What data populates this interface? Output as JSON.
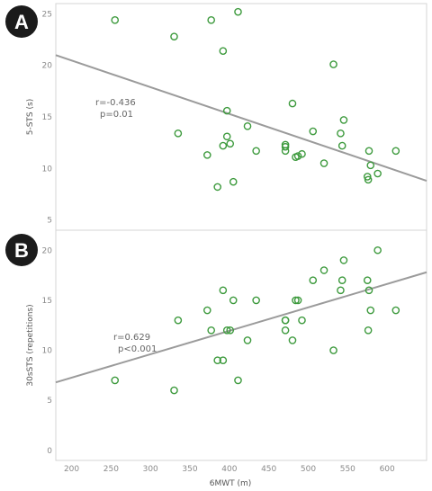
{
  "colors": {
    "point": "#3d9a3d",
    "trendline": "#9b9b9b",
    "frame": "#d4d4d4",
    "badge": "#1b1b1b"
  },
  "chart_data": [
    {
      "type": "scatter",
      "panel_label": "A",
      "ylabel": "5-STS (s)",
      "xlabel": "",
      "xlim": [
        180,
        650
      ],
      "ylim": [
        4,
        26
      ],
      "x_ticks": [],
      "y_ticks": [
        5,
        10,
        15,
        20,
        25
      ],
      "grid": false,
      "trendline": {
        "x": [
          180,
          650
        ],
        "y": [
          21.0,
          8.8
        ]
      },
      "annotation": [
        "r=-0.436",
        "p=0.01"
      ],
      "points": [
        {
          "x": 255,
          "y": 24.4
        },
        {
          "x": 330,
          "y": 22.8
        },
        {
          "x": 335,
          "y": 13.4
        },
        {
          "x": 372,
          "y": 11.3
        },
        {
          "x": 377,
          "y": 24.4
        },
        {
          "x": 385,
          "y": 8.2
        },
        {
          "x": 392,
          "y": 21.4
        },
        {
          "x": 392,
          "y": 12.2
        },
        {
          "x": 397,
          "y": 15.6
        },
        {
          "x": 397,
          "y": 13.1
        },
        {
          "x": 401,
          "y": 12.4
        },
        {
          "x": 405,
          "y": 8.7
        },
        {
          "x": 411,
          "y": 25.2
        },
        {
          "x": 423,
          "y": 14.1
        },
        {
          "x": 434,
          "y": 11.7
        },
        {
          "x": 471,
          "y": 12.3
        },
        {
          "x": 471,
          "y": 12.1
        },
        {
          "x": 471,
          "y": 11.7
        },
        {
          "x": 480,
          "y": 16.3
        },
        {
          "x": 484,
          "y": 11.1
        },
        {
          "x": 487,
          "y": 11.2
        },
        {
          "x": 492,
          "y": 11.4
        },
        {
          "x": 506,
          "y": 13.6
        },
        {
          "x": 520,
          "y": 10.5
        },
        {
          "x": 532,
          "y": 20.1
        },
        {
          "x": 541,
          "y": 13.4
        },
        {
          "x": 543,
          "y": 12.2
        },
        {
          "x": 545,
          "y": 14.7
        },
        {
          "x": 575,
          "y": 9.2
        },
        {
          "x": 576,
          "y": 8.9
        },
        {
          "x": 577,
          "y": 11.7
        },
        {
          "x": 579,
          "y": 10.3
        },
        {
          "x": 588,
          "y": 9.5
        },
        {
          "x": 611,
          "y": 11.7
        }
      ]
    },
    {
      "type": "scatter",
      "panel_label": "B",
      "ylabel": "30sSTS (repetitions)",
      "xlabel": "6MWT (m)",
      "xlim": [
        180,
        650
      ],
      "ylim": [
        -1,
        22
      ],
      "x_ticks": [
        200,
        250,
        300,
        350,
        400,
        450,
        500,
        550,
        600
      ],
      "y_ticks": [
        0,
        5,
        10,
        15,
        20
      ],
      "grid": false,
      "trendline": {
        "x": [
          180,
          650
        ],
        "y": [
          6.8,
          17.8
        ]
      },
      "annotation": [
        "r=0.629",
        "p<0.001"
      ],
      "points": [
        {
          "x": 255,
          "y": 7
        },
        {
          "x": 330,
          "y": 6
        },
        {
          "x": 335,
          "y": 13
        },
        {
          "x": 372,
          "y": 14
        },
        {
          "x": 377,
          "y": 12
        },
        {
          "x": 385,
          "y": 9
        },
        {
          "x": 392,
          "y": 16
        },
        {
          "x": 392,
          "y": 9
        },
        {
          "x": 397,
          "y": 12
        },
        {
          "x": 401,
          "y": 12
        },
        {
          "x": 405,
          "y": 15
        },
        {
          "x": 411,
          "y": 7
        },
        {
          "x": 423,
          "y": 11
        },
        {
          "x": 434,
          "y": 15
        },
        {
          "x": 471,
          "y": 13
        },
        {
          "x": 471,
          "y": 13
        },
        {
          "x": 471,
          "y": 12
        },
        {
          "x": 480,
          "y": 11
        },
        {
          "x": 484,
          "y": 15
        },
        {
          "x": 487,
          "y": 15
        },
        {
          "x": 492,
          "y": 13
        },
        {
          "x": 506,
          "y": 17
        },
        {
          "x": 520,
          "y": 18
        },
        {
          "x": 532,
          "y": 10
        },
        {
          "x": 541,
          "y": 16
        },
        {
          "x": 543,
          "y": 17
        },
        {
          "x": 545,
          "y": 19
        },
        {
          "x": 575,
          "y": 17
        },
        {
          "x": 576,
          "y": 12
        },
        {
          "x": 577,
          "y": 16
        },
        {
          "x": 579,
          "y": 14
        },
        {
          "x": 588,
          "y": 20
        },
        {
          "x": 611,
          "y": 14
        }
      ]
    }
  ]
}
